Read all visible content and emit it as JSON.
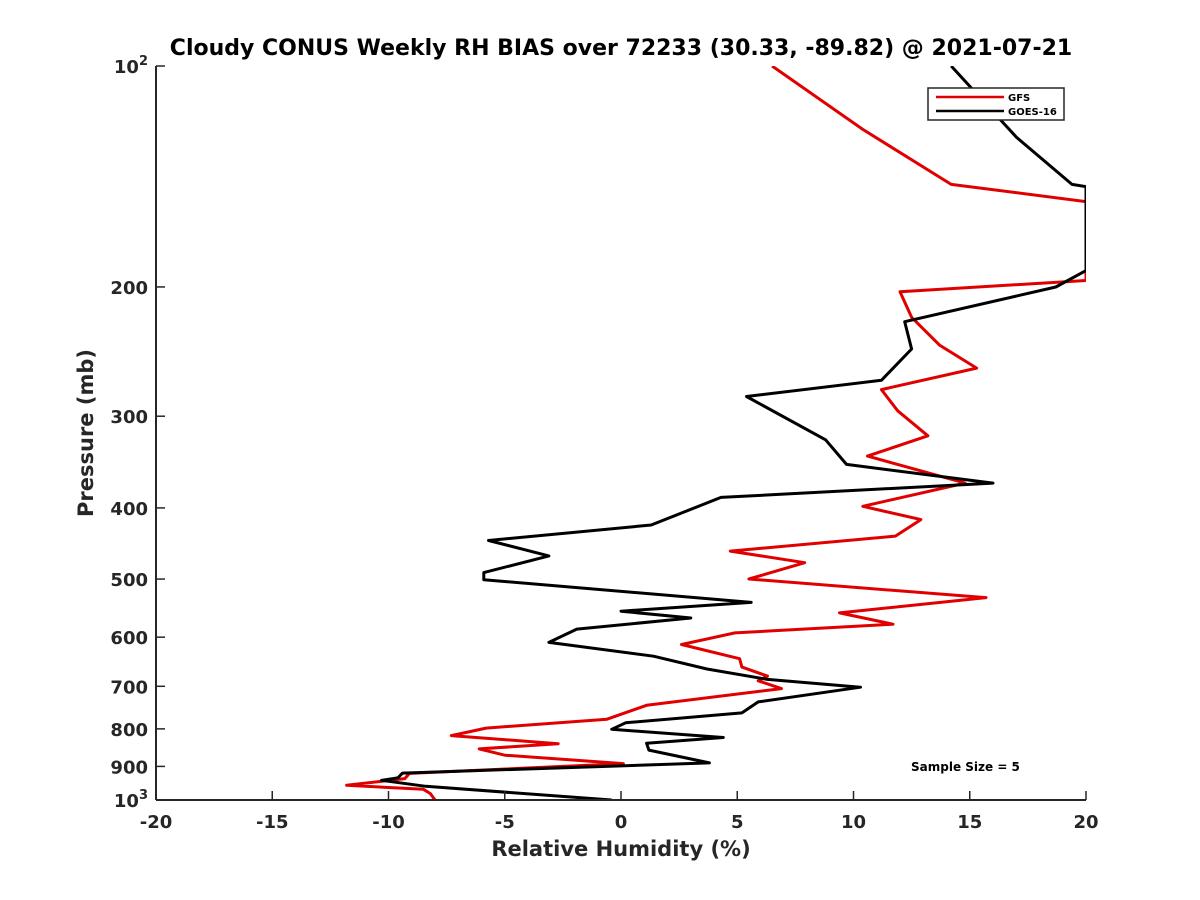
{
  "chart_data": {
    "type": "line",
    "orientation": "vertical-profile",
    "title": "Cloudy CONUS Weekly RH BIAS over 72233 (30.33, -89.82) @ 2021-07-21",
    "xlabel": "Relative Humidity (%)",
    "ylabel": "Pressure (mb)",
    "xlim": [
      -20,
      20
    ],
    "ylim": [
      100,
      1000
    ],
    "yscale": "log",
    "y_reversed": true,
    "grid": false,
    "legend_position": "top-right",
    "annotation": "Sample Size = 5",
    "x_ticks": [
      {
        "value": -20,
        "label": "-20"
      },
      {
        "value": -15,
        "label": "-15"
      },
      {
        "value": -10,
        "label": "-10"
      },
      {
        "value": -5,
        "label": "-5"
      },
      {
        "value": 0,
        "label": "0"
      },
      {
        "value": 5,
        "label": "5"
      },
      {
        "value": 10,
        "label": "10"
      },
      {
        "value": 15,
        "label": "15"
      },
      {
        "value": 20,
        "label": "20"
      }
    ],
    "y_ticks": [
      {
        "value": 100,
        "base": "10",
        "exp": "2"
      },
      {
        "value": 200,
        "label": "200"
      },
      {
        "value": 300,
        "label": "300"
      },
      {
        "value": 400,
        "label": "400"
      },
      {
        "value": 500,
        "label": "500"
      },
      {
        "value": 600,
        "label": "600"
      },
      {
        "value": 700,
        "label": "700"
      },
      {
        "value": 800,
        "label": "800"
      },
      {
        "value": 900,
        "label": "900"
      },
      {
        "value": 1000,
        "base": "10",
        "exp": "3"
      }
    ],
    "series": [
      {
        "name": "GFS",
        "color": "#e00000",
        "x": [
          6.5,
          10.4,
          14.2,
          20,
          20,
          12,
          12.5,
          13.7,
          15.3,
          11.2,
          11.9,
          13.2,
          10.6,
          14.8,
          10.4,
          12.9,
          11.8,
          4.7,
          7.9,
          5.5,
          15.7,
          9.4,
          11.7,
          4.9,
          2.6,
          5.1,
          5.2,
          6.3,
          5.9,
          6.9,
          1.1,
          -0.6,
          -5.8,
          -7.3,
          -2.7,
          -6.1,
          -5.0,
          0.1,
          -9.1,
          -9.3,
          -11.8,
          -8.5,
          -8.2,
          -8.0
        ],
        "y": [
          100,
          122,
          145,
          153,
          196,
          203,
          220,
          240,
          258,
          276,
          295,
          319,
          340,
          370,
          398,
          415,
          437,
          458,
          475,
          500,
          530,
          556,
          576,
          592,
          614,
          642,
          659,
          678,
          688,
          705,
          743,
          776,
          798,
          817,
          838,
          852,
          869,
          892,
          920,
          935,
          955,
          967,
          980,
          1000
        ]
      },
      {
        "name": "GOES-16",
        "color": "#000000",
        "x": [
          14.2,
          17.0,
          19.4,
          20,
          20,
          18.7,
          12.2,
          12.5,
          11.2,
          5.4,
          8.8,
          9.7,
          16.0,
          4.3,
          1.3,
          -5.7,
          -3.1,
          -5.9,
          -5.9,
          5.6,
          0.0,
          3.0,
          -1.9,
          -3.1,
          1.4,
          3.7,
          6.3,
          10.3,
          5.9,
          5.2,
          0.2,
          -0.4,
          4.4,
          1.1,
          1.2,
          3.8,
          -9.4,
          -9.6,
          -10.3,
          -8.4,
          -0.4
        ],
        "y": [
          100,
          125,
          145,
          146,
          190,
          200,
          223,
          243,
          268,
          282,
          323,
          349,
          370,
          387,
          422,
          443,
          465,
          490,
          501,
          538,
          553,
          565,
          585,
          610,
          637,
          663,
          685,
          702,
          735,
          761,
          785,
          801,
          822,
          837,
          855,
          890,
          919,
          933,
          940,
          958,
          1000
        ]
      }
    ]
  }
}
